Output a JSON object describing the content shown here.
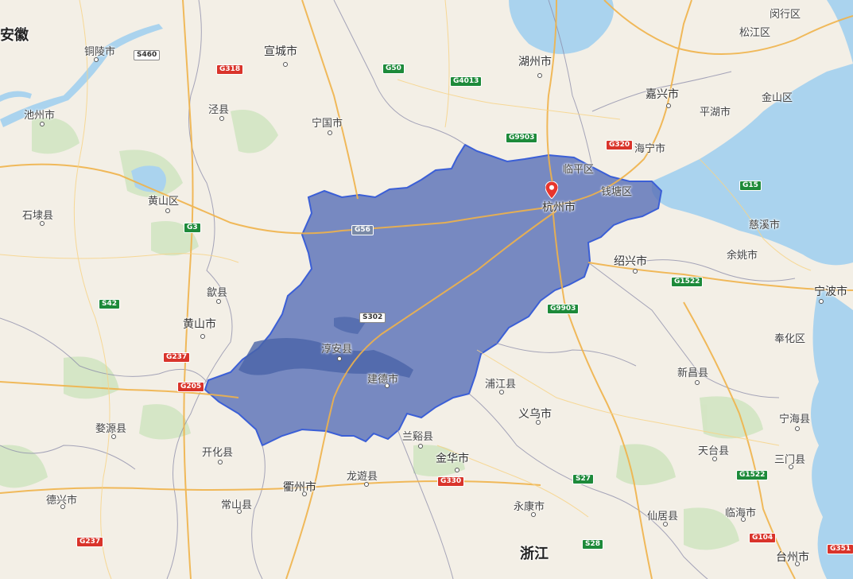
{
  "map": {
    "highlighted_region": "杭州市",
    "colors": {
      "land": "#f3efe6",
      "water": "#aad3ee",
      "region_fill": "#5c73b8",
      "region_stroke": "#3b5fd6",
      "pin": "#e8352d"
    },
    "marker": {
      "label": "杭州市",
      "icon": "location-pin-icon"
    },
    "provinces": [
      {
        "id": "anhui",
        "text": "安徽"
      },
      {
        "id": "zhejiang",
        "text": "浙江"
      }
    ],
    "places": [
      {
        "id": "tongling",
        "text": "铜陵市"
      },
      {
        "id": "xuancheng",
        "text": "宣城市"
      },
      {
        "id": "huzhou",
        "text": "湖州市"
      },
      {
        "id": "minhang",
        "text": "闵行区"
      },
      {
        "id": "songjiang",
        "text": "松江区"
      },
      {
        "id": "chizhou",
        "text": "池州市"
      },
      {
        "id": "jingxian",
        "text": "泾县"
      },
      {
        "id": "ningguo",
        "text": "宁国市"
      },
      {
        "id": "jiaxing",
        "text": "嘉兴市"
      },
      {
        "id": "pinghu",
        "text": "平湖市"
      },
      {
        "id": "jinshan",
        "text": "金山区"
      },
      {
        "id": "haining",
        "text": "海宁市"
      },
      {
        "id": "linping",
        "text": "临平区"
      },
      {
        "id": "qiantang",
        "text": "钱塘区"
      },
      {
        "id": "huangshanqu",
        "text": "黄山区"
      },
      {
        "id": "hangzhou",
        "text": "杭州市"
      },
      {
        "id": "shidai",
        "text": "石埭县"
      },
      {
        "id": "cixi",
        "text": "慈溪市"
      },
      {
        "id": "yuyao",
        "text": "余姚市"
      },
      {
        "id": "shaoxing",
        "text": "绍兴市"
      },
      {
        "id": "shexian",
        "text": "歙县"
      },
      {
        "id": "ningbo",
        "text": "宁波市"
      },
      {
        "id": "huangshan",
        "text": "黄山市"
      },
      {
        "id": "fenghua",
        "text": "奉化区"
      },
      {
        "id": "chunan",
        "text": "淳安县"
      },
      {
        "id": "xinchang",
        "text": "新昌县"
      },
      {
        "id": "jiande",
        "text": "建德市"
      },
      {
        "id": "pujiang",
        "text": "浦江县"
      },
      {
        "id": "yiwu",
        "text": "义乌市"
      },
      {
        "id": "ninghai",
        "text": "宁海县"
      },
      {
        "id": "wuyuan",
        "text": "婺源县"
      },
      {
        "id": "lanxi",
        "text": "兰谿县"
      },
      {
        "id": "kaihua",
        "text": "开化县"
      },
      {
        "id": "jinhua",
        "text": "金华市"
      },
      {
        "id": "tiantai",
        "text": "天台县"
      },
      {
        "id": "sanmen",
        "text": "三门县"
      },
      {
        "id": "quzhou",
        "text": "衢州市"
      },
      {
        "id": "longyou",
        "text": "龙遊县"
      },
      {
        "id": "dexing",
        "text": "德兴市"
      },
      {
        "id": "changshan",
        "text": "常山县"
      },
      {
        "id": "yongkang",
        "text": "永康市"
      },
      {
        "id": "xianju",
        "text": "仙居县"
      },
      {
        "id": "linhai",
        "text": "临海市"
      },
      {
        "id": "taizhou",
        "text": "台州市"
      }
    ],
    "road_shields": [
      {
        "id": "s460",
        "text": "S460",
        "style": "white"
      },
      {
        "id": "g318",
        "text": "G318",
        "style": "red"
      },
      {
        "id": "g50",
        "text": "G50",
        "style": "green"
      },
      {
        "id": "g4013",
        "text": "G4013",
        "style": "green"
      },
      {
        "id": "g9903a",
        "text": "G9903",
        "style": "green"
      },
      {
        "id": "g320",
        "text": "G320",
        "style": "red"
      },
      {
        "id": "g15",
        "text": "G15",
        "style": "green"
      },
      {
        "id": "g3",
        "text": "G3",
        "style": "green"
      },
      {
        "id": "g56",
        "text": "G56",
        "style": "gray"
      },
      {
        "id": "s42",
        "text": "S42",
        "style": "green"
      },
      {
        "id": "g1522a",
        "text": "G1522",
        "style": "green"
      },
      {
        "id": "s302",
        "text": "S302",
        "style": "white"
      },
      {
        "id": "g9903b",
        "text": "G9903",
        "style": "green"
      },
      {
        "id": "g237a",
        "text": "G237",
        "style": "red"
      },
      {
        "id": "g205",
        "text": "G205",
        "style": "red"
      },
      {
        "id": "g330",
        "text": "G330",
        "style": "red"
      },
      {
        "id": "s27",
        "text": "S27",
        "style": "green"
      },
      {
        "id": "g1522b",
        "text": "G1522",
        "style": "green"
      },
      {
        "id": "g237b",
        "text": "G237",
        "style": "red"
      },
      {
        "id": "s28",
        "text": "S28",
        "style": "green"
      },
      {
        "id": "g104",
        "text": "G104",
        "style": "red"
      },
      {
        "id": "g351",
        "text": "G351",
        "style": "red"
      }
    ]
  }
}
